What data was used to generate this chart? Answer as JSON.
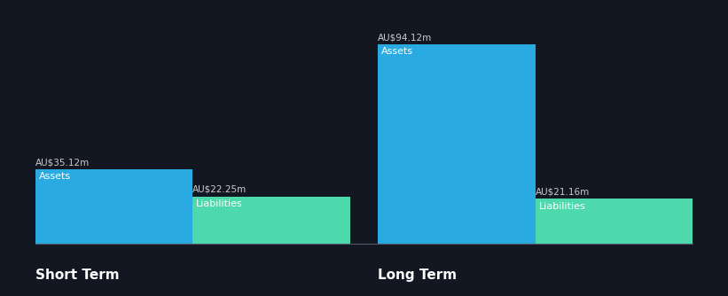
{
  "background_color": "#131722",
  "asset_color": "#29ABE2",
  "liability_color": "#4DD9AC",
  "text_color": "#FFFFFF",
  "label_color": "#CCCCCC",
  "groups": [
    {
      "label": "Short Term",
      "asset_value": 35.12,
      "liability_value": 22.25,
      "asset_label": "AU$35.12m",
      "liability_label": "AU$22.25m"
    },
    {
      "label": "Long Term",
      "asset_value": 94.12,
      "liability_value": 21.16,
      "asset_label": "AU$94.12m",
      "liability_label": "AU$21.16m"
    }
  ],
  "bar_labels": [
    "Assets",
    "Liabilities"
  ],
  "max_value": 100,
  "figsize": [
    8.21,
    3.34
  ],
  "dpi": 100
}
